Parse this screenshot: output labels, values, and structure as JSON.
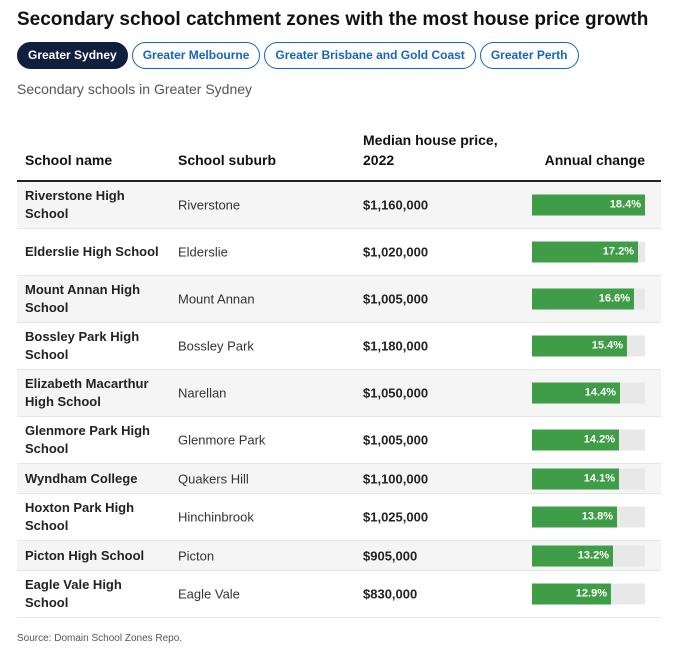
{
  "title": "Secondary school catchment zones with the most house price growth",
  "tabs": [
    {
      "label": "Greater Sydney",
      "active": true
    },
    {
      "label": "Greater Melbourne",
      "active": false
    },
    {
      "label": "Greater Brisbane and Gold Coast",
      "active": false
    },
    {
      "label": "Greater Perth",
      "active": false
    }
  ],
  "subtitle": "Secondary schools in Greater Sydney",
  "columns": {
    "school": "School name",
    "suburb": "School suburb",
    "price": "Median house price, 2022",
    "change": "Annual change"
  },
  "source": "Source: Domain School Zones Repo.",
  "colors": {
    "bar": "#3e9d46",
    "track": "#e8e8e8",
    "active_tab": "#0f1f3d",
    "tab_border": "#1565c0"
  },
  "chart_data": {
    "type": "table",
    "bar_max": 18.4,
    "rows": [
      {
        "school": "Riverstone High School",
        "suburb": "Riverstone",
        "price": "$1,160,000",
        "change": 18.4,
        "change_label": "18.4%"
      },
      {
        "school": "Elderslie High School",
        "suburb": "Elderslie",
        "price": "$1,020,000",
        "change": 17.2,
        "change_label": "17.2%"
      },
      {
        "school": "Mount Annan High School",
        "suburb": "Mount Annan",
        "price": "$1,005,000",
        "change": 16.6,
        "change_label": "16.6%"
      },
      {
        "school": "Bossley Park High School",
        "suburb": "Bossley Park",
        "price": "$1,180,000",
        "change": 15.4,
        "change_label": "15.4%"
      },
      {
        "school": "Elizabeth Macarthur High School",
        "suburb": "Narellan",
        "price": "$1,050,000",
        "change": 14.4,
        "change_label": "14.4%"
      },
      {
        "school": "Glenmore Park High School",
        "suburb": "Glenmore Park",
        "price": "$1,005,000",
        "change": 14.2,
        "change_label": "14.2%"
      },
      {
        "school": "Wyndham College",
        "suburb": "Quakers Hill",
        "price": "$1,100,000",
        "change": 14.1,
        "change_label": "14.1%"
      },
      {
        "school": "Hoxton Park High School",
        "suburb": "Hinchinbrook",
        "price": "$1,025,000",
        "change": 13.8,
        "change_label": "13.8%"
      },
      {
        "school": "Picton High School",
        "suburb": "Picton",
        "price": "$905,000",
        "change": 13.2,
        "change_label": "13.2%"
      },
      {
        "school": "Eagle Vale High School",
        "suburb": "Eagle Vale",
        "price": "$830,000",
        "change": 12.9,
        "change_label": "12.9%"
      }
    ]
  }
}
